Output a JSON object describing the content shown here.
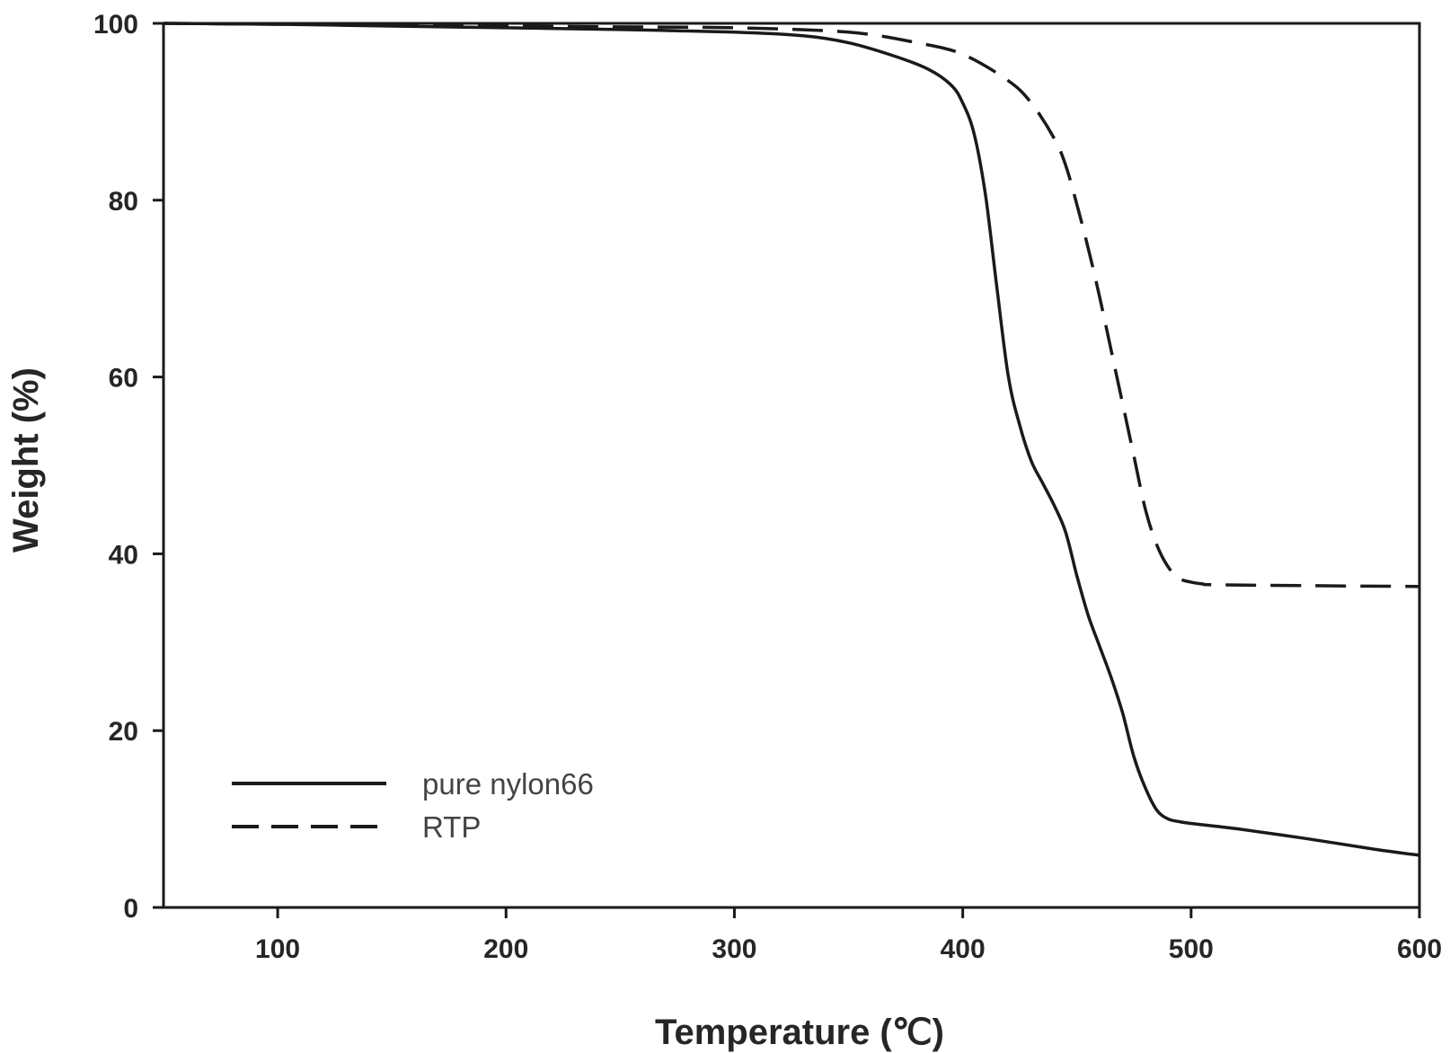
{
  "chart_data": {
    "type": "line",
    "title": "",
    "xlabel": "Temperature (℃)",
    "ylabel": "Weight (%)",
    "xlim": [
      50,
      600
    ],
    "ylim": [
      0,
      100
    ],
    "xticks": [
      100,
      200,
      300,
      400,
      500,
      600
    ],
    "yticks": [
      0,
      20,
      40,
      60,
      80,
      100
    ],
    "grid": false,
    "legend_position": "bottom-left",
    "series": [
      {
        "name": "pure nylon66",
        "style": "solid",
        "color": "#1a1a1a",
        "x": [
          50,
          100,
          150,
          200,
          250,
          300,
          330,
          350,
          370,
          385,
          395,
          400,
          405,
          410,
          415,
          420,
          425,
          430,
          435,
          440,
          445,
          450,
          455,
          460,
          465,
          470,
          475,
          480,
          485,
          490,
          495,
          500,
          520,
          550,
          580,
          600
        ],
        "y": [
          100,
          99.9,
          99.7,
          99.5,
          99.3,
          99.0,
          98.6,
          97.8,
          96.3,
          94.8,
          93.0,
          91.0,
          87.5,
          80.5,
          70.0,
          60.0,
          54.5,
          50.5,
          48.0,
          45.5,
          42.5,
          37.5,
          33.0,
          29.5,
          26.0,
          22.0,
          17.0,
          13.5,
          11.0,
          10.0,
          9.7,
          9.5,
          8.9,
          7.8,
          6.6,
          5.9
        ]
      },
      {
        "name": "RTP",
        "style": "dashed",
        "color": "#1a1a1a",
        "x": [
          50,
          100,
          150,
          200,
          250,
          300,
          350,
          380,
          400,
          420,
          430,
          440,
          445,
          450,
          455,
          460,
          465,
          470,
          475,
          480,
          485,
          490,
          495,
          500,
          505,
          510,
          550,
          600
        ],
        "y": [
          100,
          99.9,
          99.8,
          99.7,
          99.6,
          99.5,
          99.0,
          97.8,
          96.5,
          93.5,
          91.0,
          87.0,
          84.0,
          79.5,
          74.5,
          69.0,
          63.0,
          57.0,
          51.0,
          45.0,
          41.0,
          38.5,
          37.2,
          36.8,
          36.6,
          36.5,
          36.4,
          36.3
        ]
      }
    ]
  }
}
